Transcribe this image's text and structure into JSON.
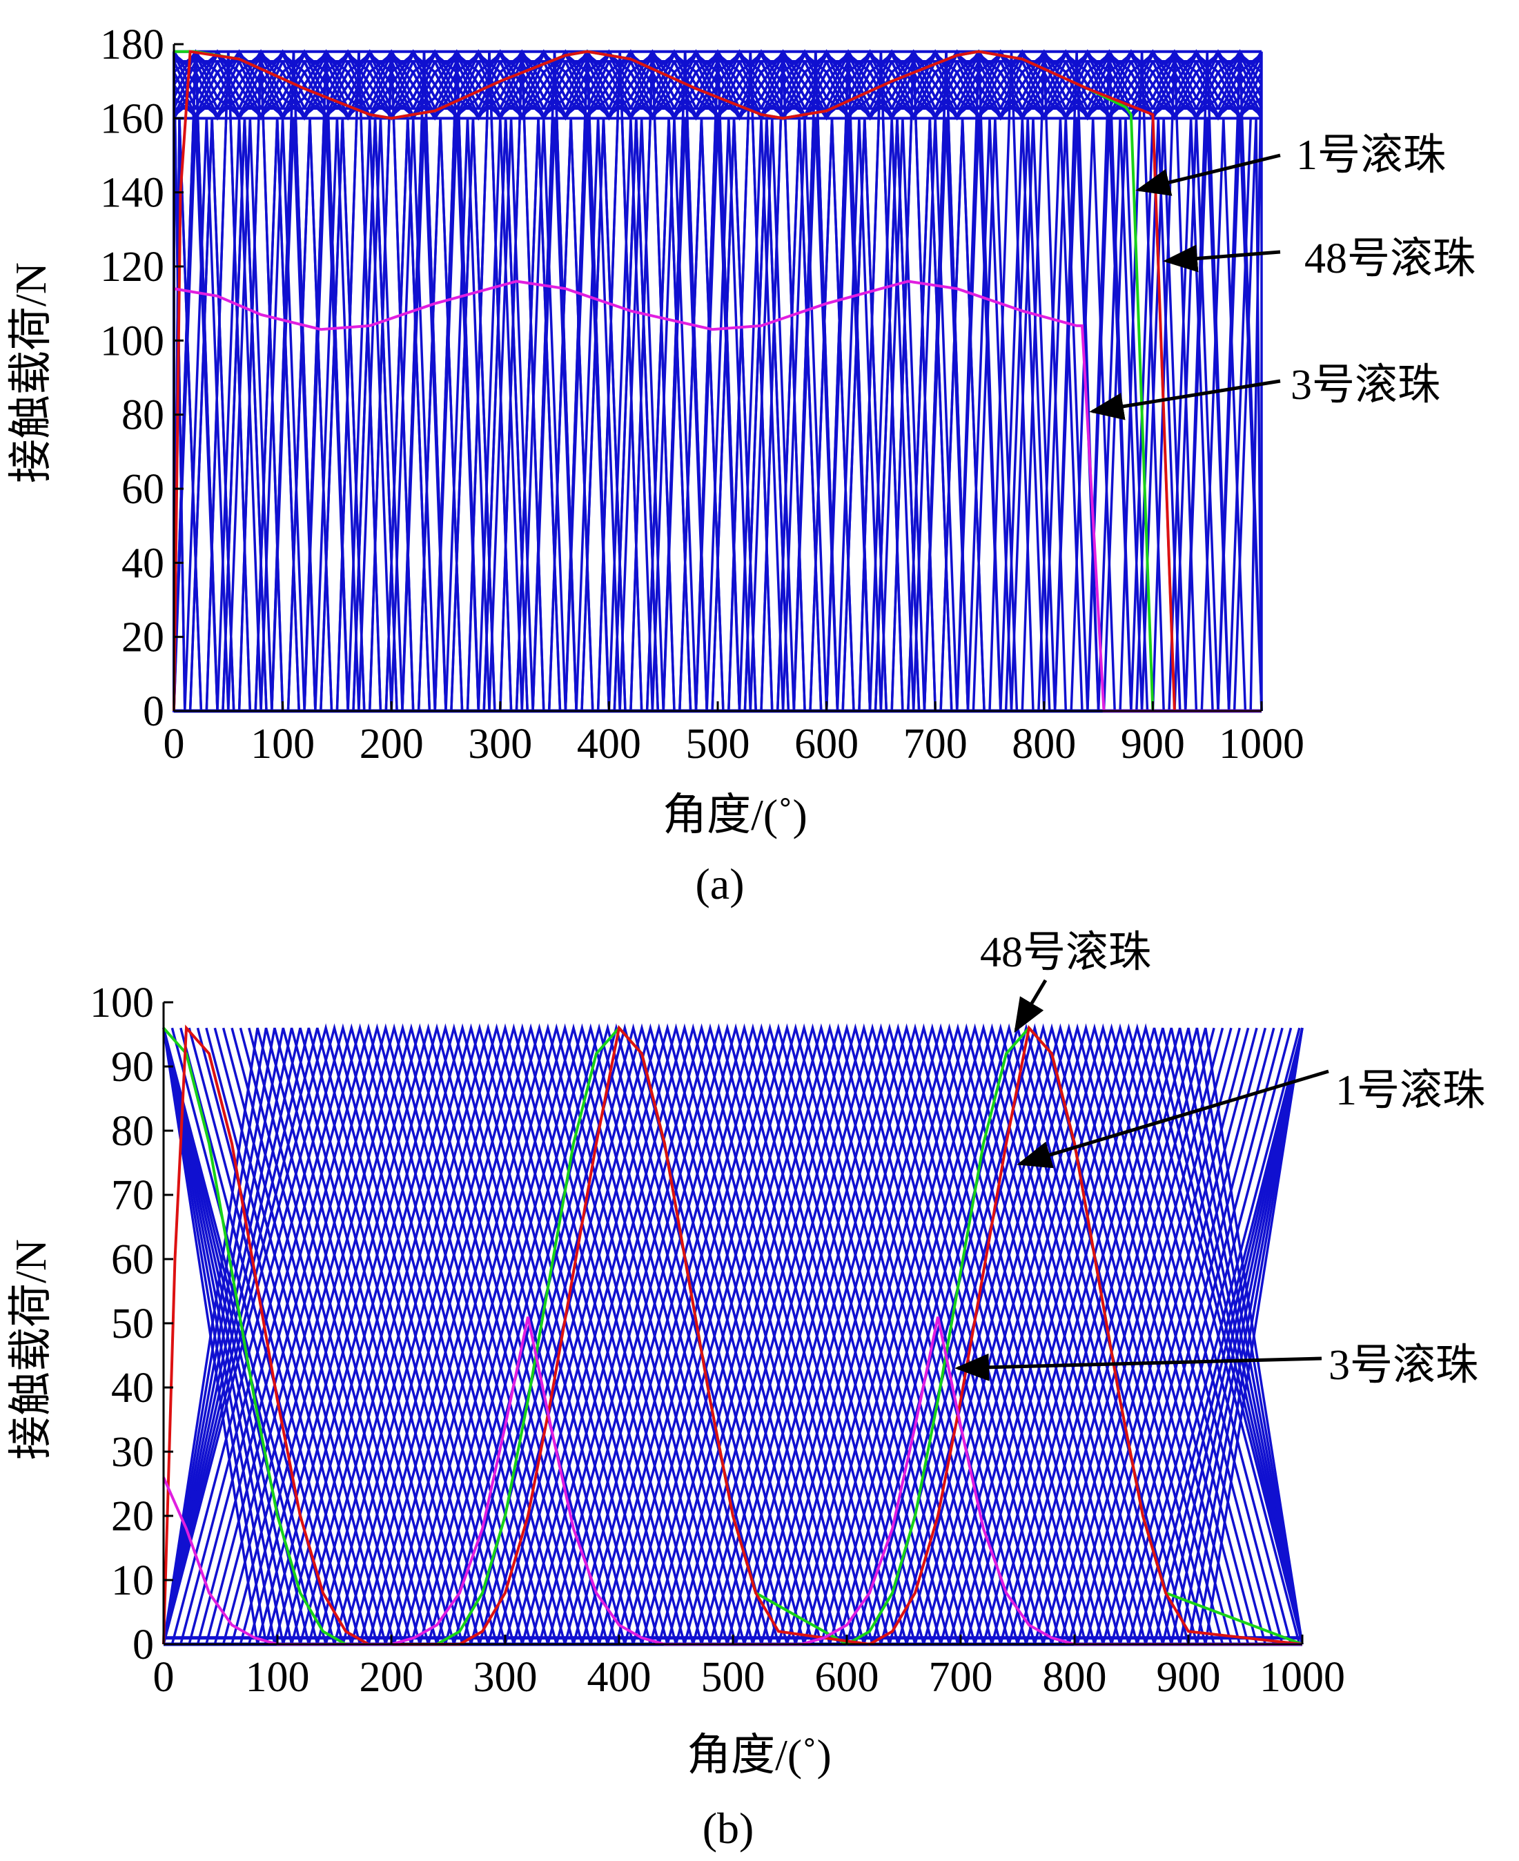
{
  "colors": {
    "other_balls": "#1010d0",
    "ball_1": "#19d219",
    "ball_48": "#dd1111",
    "ball_3": "#e01ee0",
    "arrow": "#000000"
  },
  "chart_data": [
    {
      "type": "line",
      "panel_label": "(a)",
      "xlabel": "角度/(˚)",
      "ylabel": "接触载荷/N",
      "xlim": [
        0,
        1000
      ],
      "ylim": [
        0,
        180
      ],
      "xticks": [
        "0",
        "100",
        "200",
        "300",
        "400",
        "500",
        "600",
        "700",
        "800",
        "900",
        "1000"
      ],
      "yticks": [
        "0",
        "20",
        "40",
        "60",
        "80",
        "100",
        "120",
        "140",
        "160",
        "180"
      ],
      "grid": false,
      "background_balls": {
        "count": 48,
        "period_deg": 720,
        "rise_deg": 20,
        "max_N": 178,
        "min_N": 160,
        "loaded_end_deg": 900
      },
      "series": [
        {
          "name": "1号滚珠",
          "color": "#19d219",
          "x": [
            0,
            20,
            60,
            120,
            180,
            200,
            240,
            300,
            360,
            380,
            420,
            480,
            540,
            560,
            600,
            660,
            720,
            740,
            780,
            840,
            875,
            880,
            900,
            1000
          ],
          "y": [
            178,
            178,
            176,
            168,
            161,
            160,
            162,
            170,
            177,
            178,
            176,
            168,
            161,
            160,
            162,
            170,
            177,
            178,
            176,
            168,
            163,
            161,
            0,
            0
          ]
        },
        {
          "name": "48号滚珠",
          "color": "#dd1111",
          "x": [
            0,
            6,
            15,
            60,
            120,
            180,
            200,
            240,
            300,
            360,
            380,
            420,
            480,
            540,
            560,
            600,
            660,
            720,
            740,
            780,
            840,
            900,
            920,
            1000
          ],
          "y": [
            0,
            140,
            178,
            176,
            168,
            161,
            160,
            162,
            170,
            177,
            178,
            176,
            168,
            161,
            160,
            162,
            170,
            177,
            178,
            176,
            168,
            161,
            0,
            0
          ]
        },
        {
          "name": "3号滚珠",
          "color": "#e01ee0",
          "x": [
            0,
            40,
            80,
            135,
            180,
            240,
            315,
            360,
            420,
            495,
            540,
            600,
            675,
            720,
            780,
            830,
            835,
            855,
            1000
          ],
          "y": [
            114,
            112,
            107,
            103,
            104,
            110,
            116,
            114,
            108,
            103,
            104,
            110,
            116,
            114,
            108,
            104,
            104,
            0,
            0
          ]
        }
      ],
      "annotations": [
        {
          "text": "1号滚珠"
        },
        {
          "text": "48号滚珠"
        },
        {
          "text": "3号滚珠"
        }
      ]
    },
    {
      "type": "line",
      "panel_label": "(b)",
      "xlabel": "角度/(˚)",
      "ylabel": "接触载荷/N",
      "xlim": [
        0,
        1000
      ],
      "ylim": [
        0,
        100
      ],
      "xticks": [
        "0",
        "100",
        "200",
        "300",
        "400",
        "500",
        "600",
        "700",
        "800",
        "900",
        "1000"
      ],
      "yticks": [
        "0",
        "10",
        "20",
        "30",
        "40",
        "50",
        "60",
        "70",
        "80",
        "90",
        "100"
      ],
      "grid": false,
      "background_balls": {
        "count": 48,
        "period_deg": 360,
        "peak_N": 96,
        "pulse_width_deg": 285
      },
      "series": [
        {
          "name": "1号滚珠",
          "color": "#19d219",
          "x": [
            0,
            20,
            40,
            60,
            80,
            100,
            120,
            140,
            160,
            240,
            260,
            280,
            300,
            320,
            340,
            360,
            380,
            400,
            420,
            440,
            460,
            480,
            500,
            520,
            600,
            620,
            640,
            660,
            680,
            700,
            720,
            740,
            760,
            780,
            800,
            820,
            840,
            860,
            880,
            1000
          ],
          "y": [
            96,
            92,
            78,
            58,
            38,
            20,
            8,
            2,
            0,
            0,
            2,
            8,
            20,
            38,
            58,
            78,
            92,
            96,
            92,
            78,
            58,
            38,
            20,
            8,
            0,
            2,
            8,
            20,
            38,
            58,
            78,
            92,
            96,
            92,
            78,
            58,
            38,
            20,
            8,
            0
          ]
        },
        {
          "name": "48号滚珠",
          "color": "#dd1111",
          "x": [
            0,
            10,
            20,
            40,
            60,
            80,
            100,
            120,
            140,
            160,
            180,
            260,
            280,
            300,
            320,
            340,
            360,
            380,
            400,
            420,
            440,
            460,
            480,
            500,
            520,
            540,
            620,
            640,
            660,
            680,
            700,
            720,
            740,
            760,
            780,
            800,
            820,
            840,
            860,
            880,
            900,
            1000
          ],
          "y": [
            0,
            60,
            96,
            92,
            78,
            58,
            38,
            20,
            8,
            2,
            0,
            0,
            2,
            8,
            20,
            38,
            58,
            78,
            96,
            92,
            78,
            58,
            38,
            20,
            8,
            2,
            0,
            2,
            8,
            20,
            38,
            58,
            78,
            96,
            92,
            78,
            58,
            38,
            20,
            8,
            2,
            0
          ]
        },
        {
          "name": "3号滚珠",
          "color": "#e01ee0",
          "x": [
            0,
            20,
            40,
            60,
            80,
            100,
            200,
            220,
            240,
            260,
            280,
            300,
            320,
            340,
            360,
            380,
            400,
            420,
            440,
            460,
            560,
            580,
            600,
            620,
            640,
            660,
            680,
            700,
            720,
            740,
            760,
            780,
            800,
            820,
            1000
          ],
          "y": [
            26,
            18,
            8,
            3,
            1,
            0,
            0,
            1,
            3,
            8,
            18,
            34,
            51,
            34,
            18,
            8,
            3,
            1,
            0,
            0,
            0,
            1,
            3,
            8,
            18,
            34,
            51,
            34,
            18,
            8,
            3,
            1,
            0,
            0,
            0
          ]
        }
      ],
      "annotations": [
        {
          "text": "48号滚珠"
        },
        {
          "text": "1号滚珠"
        },
        {
          "text": "3号滚珠"
        }
      ]
    }
  ]
}
